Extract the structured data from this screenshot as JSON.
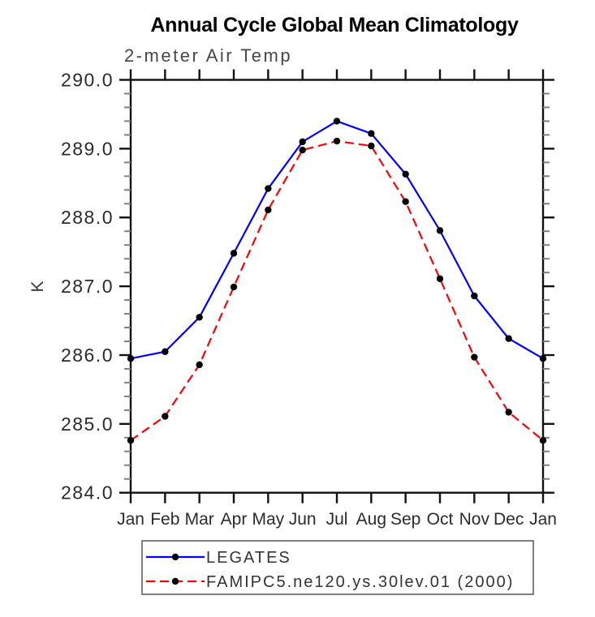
{
  "chart_data": {
    "type": "line",
    "title": "Annual Cycle Global Mean Climatology",
    "subtitle": "2-meter Air Temp",
    "ylabel": "K",
    "xlabel": "",
    "grid": false,
    "legend_position": "below",
    "ylim": [
      284.0,
      290.0
    ],
    "y_major_step": 1.0,
    "y_minor_step": 0.2,
    "y_tick_labels": [
      "290.0",
      "289.0",
      "288.0",
      "287.0",
      "286.0",
      "285.0",
      "284.0"
    ],
    "x_categories": [
      "Jan",
      "Feb",
      "Mar",
      "Apr",
      "May",
      "Jun",
      "Jul",
      "Aug",
      "Sep",
      "Oct",
      "Nov",
      "Dec",
      "Jan"
    ],
    "series": [
      {
        "name": "LEGATES",
        "color": "#0000ff",
        "line_style": "solid",
        "marker": "black-filled-circle",
        "values": [
          285.95,
          286.05,
          286.55,
          287.48,
          288.42,
          289.1,
          289.4,
          289.22,
          288.63,
          287.81,
          286.86,
          286.24,
          285.95
        ]
      },
      {
        "name": "FAMIPC5.ne120.ys.30lev.01 (2000)",
        "color": "#ff0000",
        "line_style": "dashed",
        "marker": "black-filled-circle",
        "values": [
          284.76,
          285.11,
          285.86,
          286.99,
          288.11,
          288.98,
          289.11,
          289.04,
          288.23,
          287.11,
          285.97,
          285.17,
          284.76
        ]
      }
    ]
  },
  "colors": {
    "axis": "#111111",
    "minor_tick": "#808080",
    "marker_fill": "#000000",
    "legend_border": "#555555",
    "background": "#ffffff"
  }
}
